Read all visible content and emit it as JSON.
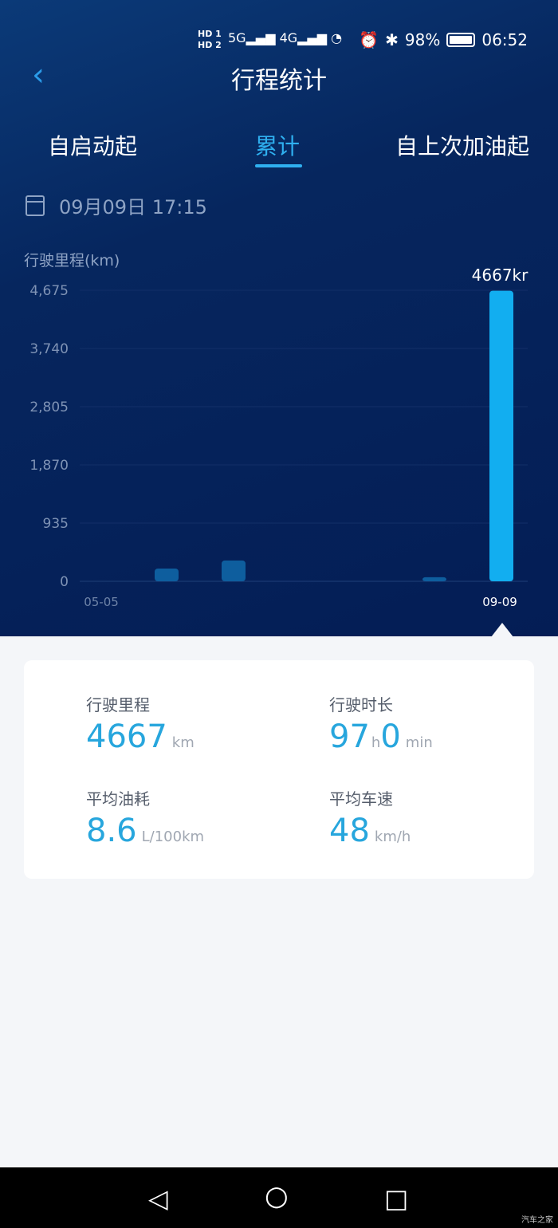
{
  "status": {
    "time": "06:52",
    "battery": "98%",
    "sim1": "HD 1",
    "sim2": "HD 2",
    "net1": "5G",
    "net2": "4G"
  },
  "header": {
    "title": "行程统计"
  },
  "tabs": [
    {
      "label": "自启动起"
    },
    {
      "label": "累计",
      "active": true
    },
    {
      "label": "自上次加油起"
    }
  ],
  "date": "09月09日 17:15",
  "chart_data": {
    "type": "bar",
    "ylabel": "行驶里程(km)",
    "yticks": [
      "4,675",
      "3,740",
      "2,805",
      "1,870",
      "935",
      "0"
    ],
    "ylim": [
      0,
      4675
    ],
    "categories": [
      "05-05",
      "",
      "",
      "",
      "",
      "",
      "09-09"
    ],
    "x_tick_labels": [
      "05-05",
      "09-09"
    ],
    "values": [
      0,
      205,
      335,
      0,
      0,
      65,
      4667
    ],
    "highlight_label": "4667kr",
    "grid": true,
    "colors": {
      "bar": "#0e5e9e",
      "highlight": "#12aef0"
    }
  },
  "stats": [
    {
      "label": "行驶里程",
      "value": "4667",
      "unit": "km"
    },
    {
      "label": "行驶时长",
      "value": "97",
      "unit": "h",
      "value2": "0",
      "unit2": "min"
    },
    {
      "label": "平均油耗",
      "value": "8.6",
      "unit": "L/100km"
    },
    {
      "label": "平均车速",
      "value": "48",
      "unit": "km/h"
    }
  ],
  "watermark": "汽车之家"
}
